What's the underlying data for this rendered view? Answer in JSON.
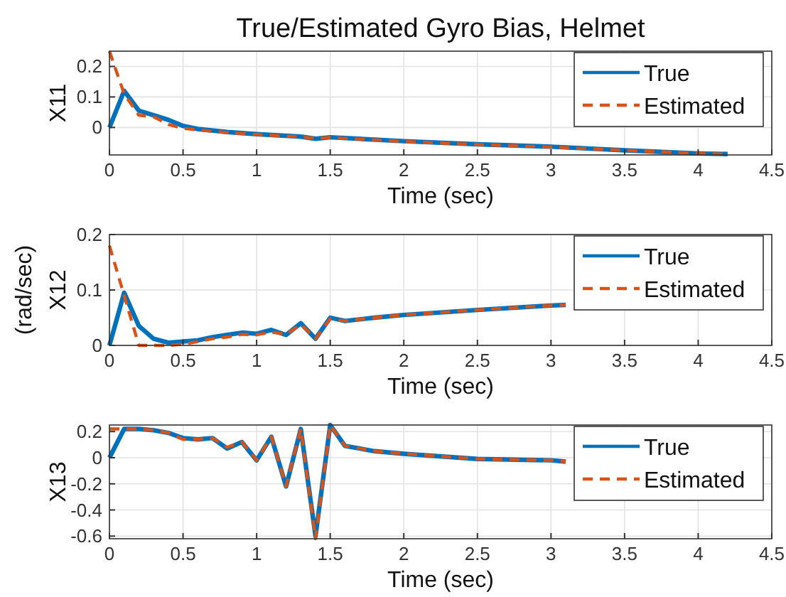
{
  "chart_data": [
    {
      "type": "line",
      "title": "True/Estimated Gyro Bias, Helmet",
      "xlabel": "Time (sec)",
      "ylabel": "X11",
      "xlim": [
        0,
        4.5
      ],
      "xticks": [
        0,
        0.5,
        1,
        1.5,
        2,
        2.5,
        3,
        3.5,
        4,
        4.5
      ],
      "ylim": [
        -0.09,
        0.25
      ],
      "yticks": [
        0,
        0.1,
        0.2
      ],
      "grid": true,
      "legend": "top right",
      "x": [
        0,
        0.1,
        0.2,
        0.3,
        0.4,
        0.5,
        0.6,
        0.8,
        1.0,
        1.3,
        1.4,
        1.5,
        2,
        2.5,
        3,
        3.5,
        4,
        4.2
      ],
      "series": [
        {
          "name": "True",
          "color": "#0072bd",
          "line_style": "solid",
          "values": [
            0,
            0.12,
            0.055,
            0.04,
            0.025,
            0.005,
            -0.005,
            -0.015,
            -0.022,
            -0.03,
            -0.037,
            -0.032,
            -0.045,
            -0.055,
            -0.063,
            -0.075,
            -0.085,
            -0.087
          ]
        },
        {
          "name": "Estimated",
          "color": "#d95319",
          "line_style": "dashed",
          "values": [
            0.25,
            0.11,
            0.04,
            0.035,
            0.01,
            -0.003,
            -0.008,
            -0.017,
            -0.023,
            -0.031,
            -0.036,
            -0.033,
            -0.046,
            -0.056,
            -0.064,
            -0.075,
            -0.085,
            -0.088
          ]
        }
      ]
    },
    {
      "type": "line",
      "xlabel": "Time (sec)",
      "ylabel": "X12",
      "annotations": [
        "(rad/sec)"
      ],
      "xlim": [
        0,
        4.5
      ],
      "xticks": [
        0,
        0.5,
        1,
        1.5,
        2,
        2.5,
        3,
        3.5,
        4,
        4.5
      ],
      "ylim": [
        0,
        0.2
      ],
      "yticks": [
        0,
        0.1,
        0.2
      ],
      "grid": true,
      "legend": "top right",
      "x": [
        0,
        0.1,
        0.2,
        0.3,
        0.4,
        0.5,
        0.6,
        0.7,
        0.8,
        0.9,
        1.0,
        1.1,
        1.2,
        1.3,
        1.4,
        1.5,
        1.6,
        1.8,
        2,
        2.5,
        3,
        3.1
      ],
      "series": [
        {
          "name": "True",
          "color": "#0072bd",
          "line_style": "solid",
          "values": [
            0,
            0.095,
            0.035,
            0.012,
            0.005,
            0.007,
            0.009,
            0.015,
            0.019,
            0.023,
            0.021,
            0.028,
            0.019,
            0.04,
            0.012,
            0.05,
            0.044,
            0.05,
            0.055,
            0.064,
            0.072,
            0.073
          ]
        },
        {
          "name": "Estimated",
          "color": "#d95319",
          "line_style": "dashed",
          "values": [
            0.18,
            0.09,
            0,
            0,
            0,
            0.002,
            0.007,
            0.012,
            0.015,
            0.02,
            0.019,
            0.024,
            0.02,
            0.038,
            0.012,
            0.048,
            0.044,
            0.05,
            0.055,
            0.064,
            0.072,
            0.073
          ]
        }
      ]
    },
    {
      "type": "line",
      "xlabel": "Time (sec)",
      "ylabel": "X13",
      "xlim": [
        0,
        4.5
      ],
      "xticks": [
        0,
        0.5,
        1,
        1.5,
        2,
        2.5,
        3,
        3.5,
        4,
        4.5
      ],
      "ylim": [
        -0.62,
        0.25
      ],
      "yticks": [
        -0.6,
        -0.4,
        -0.2,
        0,
        0.2
      ],
      "grid": true,
      "legend": "top right",
      "x": [
        0,
        0.1,
        0.2,
        0.3,
        0.4,
        0.5,
        0.6,
        0.7,
        0.8,
        0.9,
        1.0,
        1.1,
        1.2,
        1.3,
        1.4,
        1.5,
        1.6,
        1.8,
        2,
        2.5,
        3,
        3.1
      ],
      "series": [
        {
          "name": "True",
          "color": "#0072bd",
          "line_style": "solid",
          "values": [
            0,
            0.22,
            0.22,
            0.21,
            0.19,
            0.15,
            0.14,
            0.15,
            0.07,
            0.12,
            -0.02,
            0.16,
            -0.22,
            0.22,
            -0.6,
            0.25,
            0.09,
            0.05,
            0.03,
            -0.01,
            -0.02,
            -0.03
          ]
        },
        {
          "name": "Estimated",
          "color": "#d95319",
          "line_style": "dashed",
          "values": [
            0.22,
            0.22,
            0.22,
            0.21,
            0.19,
            0.14,
            0.14,
            0.15,
            0.08,
            0.12,
            -0.02,
            0.16,
            -0.22,
            0.22,
            -0.62,
            0.25,
            0.09,
            0.05,
            0.03,
            -0.01,
            -0.02,
            -0.03
          ]
        }
      ]
    }
  ]
}
